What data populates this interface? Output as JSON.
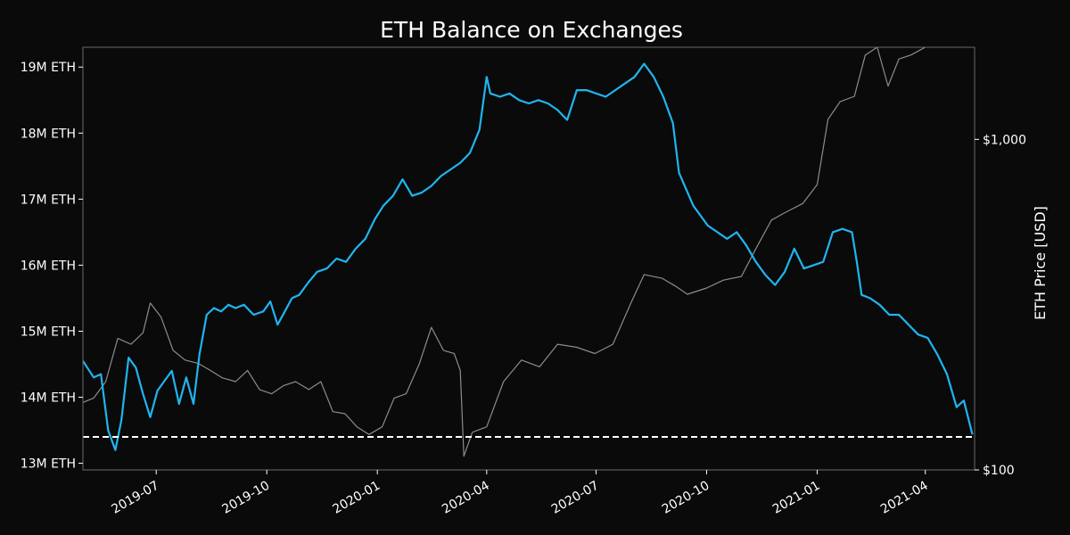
{
  "chart_data": {
    "type": "line",
    "title": "ETH Balance on Exchanges",
    "xlabel": "",
    "ylabel_left": "",
    "ylabel_right": "ETH Price [USD]",
    "grid": false,
    "x_range": [
      "2019-05-01",
      "2021-05-12"
    ],
    "ylim_left": [
      12900000,
      19300000
    ],
    "ylim_right_log": [
      100,
      1900
    ],
    "x_ticks": [
      {
        "date": "2019-07-01",
        "label": "2019-07"
      },
      {
        "date": "2019-10-01",
        "label": "2019-10"
      },
      {
        "date": "2020-01-01",
        "label": "2020-01"
      },
      {
        "date": "2020-04-01",
        "label": "2020-04"
      },
      {
        "date": "2020-07-01",
        "label": "2020-07"
      },
      {
        "date": "2020-10-01",
        "label": "2020-10"
      },
      {
        "date": "2021-01-01",
        "label": "2021-01"
      },
      {
        "date": "2021-04-01",
        "label": "2021-04"
      }
    ],
    "y_ticks_left": [
      {
        "value": 13000000,
        "label": "13M ETH"
      },
      {
        "value": 14000000,
        "label": "14M ETH"
      },
      {
        "value": 15000000,
        "label": "15M ETH"
      },
      {
        "value": 16000000,
        "label": "16M ETH"
      },
      {
        "value": 17000000,
        "label": "17M ETH"
      },
      {
        "value": 18000000,
        "label": "18M ETH"
      },
      {
        "value": 19000000,
        "label": "19M ETH"
      }
    ],
    "y_ticks_right": [
      {
        "value": 100,
        "label": "$100"
      },
      {
        "value": 1000,
        "label": "$1,000"
      }
    ],
    "reference_line": {
      "axis": "left",
      "value": 13400000,
      "style": "dashed",
      "color": "#ffffff"
    },
    "series": [
      {
        "axis": "left",
        "color": "#1fb5f0",
        "x": [
          "2019-05-01",
          "2019-05-10",
          "2019-05-16",
          "2019-05-22",
          "2019-05-28",
          "2019-06-02",
          "2019-06-08",
          "2019-06-14",
          "2019-06-20",
          "2019-06-26",
          "2019-07-02",
          "2019-07-08",
          "2019-07-14",
          "2019-07-20",
          "2019-07-26",
          "2019-08-01",
          "2019-08-06",
          "2019-08-12",
          "2019-08-18",
          "2019-08-24",
          "2019-08-30",
          "2019-09-05",
          "2019-09-12",
          "2019-09-20",
          "2019-09-28",
          "2019-10-04",
          "2019-10-10",
          "2019-10-16",
          "2019-10-22",
          "2019-10-28",
          "2019-11-05",
          "2019-11-12",
          "2019-11-20",
          "2019-11-28",
          "2019-12-06",
          "2019-12-14",
          "2019-12-22",
          "2019-12-30",
          "2020-01-06",
          "2020-01-14",
          "2020-01-22",
          "2020-01-30",
          "2020-02-07",
          "2020-02-15",
          "2020-02-23",
          "2020-03-02",
          "2020-03-10",
          "2020-03-18",
          "2020-03-26",
          "2020-04-01",
          "2020-04-04",
          "2020-04-12",
          "2020-04-20",
          "2020-04-28",
          "2020-05-06",
          "2020-05-14",
          "2020-05-22",
          "2020-05-30",
          "2020-06-07",
          "2020-06-15",
          "2020-06-23",
          "2020-07-01",
          "2020-07-09",
          "2020-07-17",
          "2020-07-25",
          "2020-08-02",
          "2020-08-10",
          "2020-08-18",
          "2020-08-26",
          "2020-09-03",
          "2020-09-08",
          "2020-09-14",
          "2020-09-20",
          "2020-09-26",
          "2020-10-02",
          "2020-10-10",
          "2020-10-18",
          "2020-10-26",
          "2020-11-03",
          "2020-11-11",
          "2020-11-19",
          "2020-11-27",
          "2020-12-05",
          "2020-12-13",
          "2020-12-21",
          "2020-12-29",
          "2021-01-06",
          "2021-01-14",
          "2021-01-22",
          "2021-01-30",
          "2021-02-03",
          "2021-02-07",
          "2021-02-14",
          "2021-02-22",
          "2021-03-02",
          "2021-03-10",
          "2021-03-18",
          "2021-03-26",
          "2021-04-03",
          "2021-04-11",
          "2021-04-19",
          "2021-04-27",
          "2021-05-03",
          "2021-05-10"
        ],
        "values": [
          14550000,
          14300000,
          14350000,
          13500000,
          13200000,
          13650000,
          14600000,
          14450000,
          14050000,
          13700000,
          14100000,
          14250000,
          14400000,
          13900000,
          14300000,
          13900000,
          14650000,
          15250000,
          15350000,
          15300000,
          15400000,
          15350000,
          15400000,
          15250000,
          15300000,
          15450000,
          15100000,
          15300000,
          15500000,
          15550000,
          15750000,
          15900000,
          15950000,
          16100000,
          16050000,
          16250000,
          16400000,
          16700000,
          16900000,
          17050000,
          17300000,
          17050000,
          17100000,
          17200000,
          17350000,
          17450000,
          17550000,
          17700000,
          18050000,
          18850000,
          18600000,
          18550000,
          18600000,
          18500000,
          18450000,
          18500000,
          18450000,
          18350000,
          18200000,
          18650000,
          18650000,
          18600000,
          18550000,
          18650000,
          18750000,
          18850000,
          19050000,
          18850000,
          18550000,
          18150000,
          17400000,
          17150000,
          16900000,
          16750000,
          16600000,
          16500000,
          16400000,
          16500000,
          16300000,
          16050000,
          15850000,
          15700000,
          15900000,
          16250000,
          15950000,
          16000000,
          16050000,
          16500000,
          16550000,
          16500000,
          16050000,
          15550000,
          15500000,
          15400000,
          15250000,
          15250000,
          15100000,
          14950000,
          14900000,
          14650000,
          14350000,
          13850000,
          13950000,
          13450000
        ]
      },
      {
        "axis": "right",
        "color": "#8c8c8c",
        "x": [
          "2019-05-01",
          "2019-05-10",
          "2019-05-20",
          "2019-05-30",
          "2019-06-10",
          "2019-06-20",
          "2019-06-26",
          "2019-07-05",
          "2019-07-15",
          "2019-07-25",
          "2019-08-05",
          "2019-08-15",
          "2019-08-25",
          "2019-09-05",
          "2019-09-15",
          "2019-09-25",
          "2019-10-05",
          "2019-10-15",
          "2019-10-25",
          "2019-11-05",
          "2019-11-15",
          "2019-11-25",
          "2019-12-05",
          "2019-12-15",
          "2019-12-25",
          "2020-01-05",
          "2020-01-15",
          "2020-01-25",
          "2020-02-05",
          "2020-02-15",
          "2020-02-25",
          "2020-03-05",
          "2020-03-10",
          "2020-03-13",
          "2020-03-20",
          "2020-04-01",
          "2020-04-15",
          "2020-04-30",
          "2020-05-15",
          "2020-05-30",
          "2020-06-15",
          "2020-06-30",
          "2020-07-15",
          "2020-07-30",
          "2020-08-10",
          "2020-08-25",
          "2020-09-05",
          "2020-09-15",
          "2020-10-01",
          "2020-10-15",
          "2020-10-30",
          "2020-11-10",
          "2020-11-24",
          "2020-12-05",
          "2020-12-20",
          "2021-01-01",
          "2021-01-10",
          "2021-01-20",
          "2021-02-01",
          "2021-02-10",
          "2021-02-20",
          "2021-03-01",
          "2021-03-10",
          "2021-03-20",
          "2021-04-01",
          "2021-04-10",
          "2021-04-20",
          "2021-04-30",
          "2021-05-05",
          "2021-05-10"
        ],
        "values": [
          160,
          165,
          185,
          250,
          240,
          260,
          320,
          290,
          230,
          215,
          210,
          200,
          190,
          185,
          200,
          175,
          170,
          180,
          185,
          175,
          185,
          150,
          148,
          135,
          128,
          135,
          165,
          170,
          210,
          270,
          230,
          225,
          200,
          110,
          130,
          135,
          185,
          215,
          205,
          240,
          235,
          225,
          240,
          320,
          390,
          380,
          360,
          340,
          355,
          375,
          385,
          460,
          570,
          600,
          640,
          730,
          1150,
          1300,
          1350,
          1800,
          1900,
          1450,
          1750,
          1800,
          1900,
          2100,
          2200,
          2750,
          3300,
          3900
        ]
      }
    ]
  }
}
